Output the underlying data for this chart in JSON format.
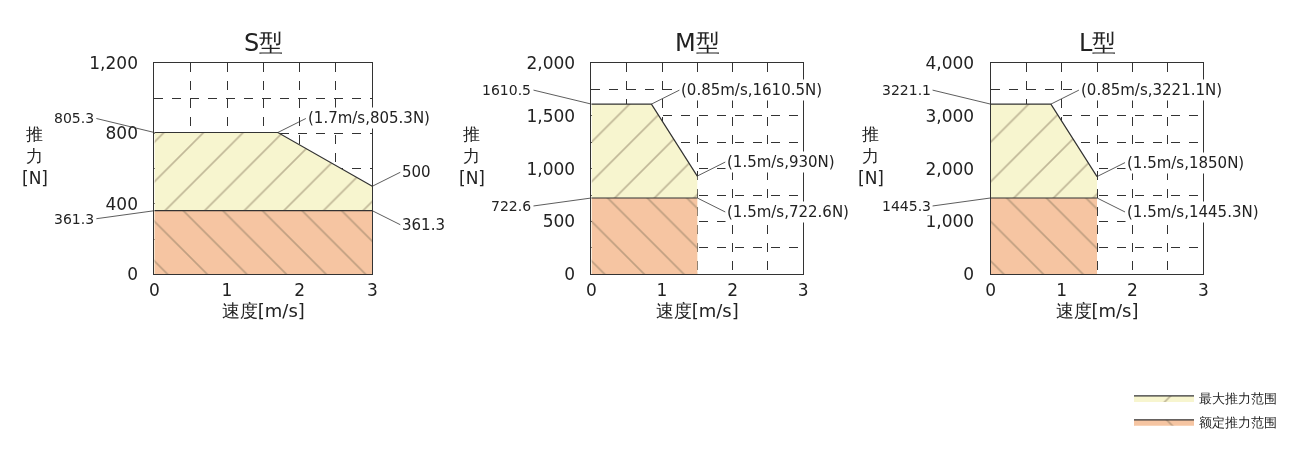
{
  "chart_data": [
    {
      "type": "area",
      "title": "S型",
      "xlabel": "速度[m/s]",
      "ylabel": "推力[N]",
      "xlim": [
        0,
        3
      ],
      "ylim": [
        0,
        1200
      ],
      "legend": "bottom right",
      "xticks": [
        0,
        {
          "value": 0.5,
          "label": null
        },
        1,
        {
          "value": 1.5,
          "label": null
        },
        2,
        {
          "value": 2.5,
          "label": null
        },
        3
      ],
      "yticks": [
        0,
        {
          "value": 200,
          "label": null
        },
        400,
        {
          "value": 600,
          "label": null
        },
        800,
        {
          "value": 1000,
          "label": null
        },
        {
          "value": 1200,
          "label": "1,200"
        }
      ],
      "grid": true,
      "series": [
        {
          "name": "最大推力范围",
          "color": "#f7f5cf",
          "x": [
            0,
            1.7,
            3
          ],
          "values": [
            805.3,
            805.3,
            500
          ]
        },
        {
          "name": "额定推力范围",
          "color": "#f6c5a2",
          "x": [
            0,
            3
          ],
          "values": [
            361.3,
            361.3
          ]
        }
      ],
      "annotations": [
        {
          "text": "805.3",
          "x": 0,
          "y": 805.3
        },
        {
          "text": "361.3",
          "x": 0,
          "y": 361.3
        },
        {
          "text": "(1.7m/s,805.3N)",
          "x": 1.7,
          "y": 805.3
        },
        {
          "text": "500",
          "x": 3,
          "y": 500
        },
        {
          "text": "361.3",
          "x": 3,
          "y": 361.3
        }
      ]
    },
    {
      "type": "area",
      "title": "M型",
      "xlabel": "速度[m/s]",
      "ylabel": "推力[N]",
      "xlim": [
        0,
        3
      ],
      "ylim": [
        0,
        2000
      ],
      "xticks": [
        0,
        {
          "value": 0.5,
          "label": null
        },
        1,
        {
          "value": 1.5,
          "label": null
        },
        2,
        {
          "value": 2.5,
          "label": null
        },
        3
      ],
      "yticks": [
        0,
        {
          "value": 250,
          "label": null
        },
        500,
        {
          "value": 750,
          "label": null
        },
        {
          "value": 1000,
          "label": "1,000"
        },
        {
          "value": 1250,
          "label": null
        },
        {
          "value": 1500,
          "label": "1,500"
        },
        {
          "value": 1750,
          "label": null
        },
        {
          "value": 2000,
          "label": "2,000"
        }
      ],
      "grid": true,
      "series": [
        {
          "name": "最大推力范围",
          "color": "#f7f5cf",
          "x": [
            0,
            0.85,
            1.5
          ],
          "values": [
            1610.5,
            1610.5,
            930
          ]
        },
        {
          "name": "额定推力范围",
          "color": "#f6c5a2",
          "x": [
            0,
            1.5
          ],
          "values": [
            722.6,
            722.6
          ]
        }
      ],
      "annotations": [
        {
          "text": "1610.5",
          "x": 0,
          "y": 1610.5
        },
        {
          "text": "722.6",
          "x": 0,
          "y": 722.6
        },
        {
          "text": "(0.85m/s,1610.5N)",
          "x": 0.85,
          "y": 1610.5
        },
        {
          "text": "(1.5m/s,930N)",
          "x": 1.5,
          "y": 930
        },
        {
          "text": "(1.5m/s,722.6N)",
          "x": 1.5,
          "y": 722.6
        }
      ]
    },
    {
      "type": "area",
      "title": "L型",
      "xlabel": "速度[m/s]",
      "ylabel": "推力[N]",
      "xlim": [
        0,
        3
      ],
      "ylim": [
        0,
        4000
      ],
      "xticks": [
        0,
        {
          "value": 0.5,
          "label": null
        },
        1,
        {
          "value": 1.5,
          "label": null
        },
        2,
        {
          "value": 2.5,
          "label": null
        },
        3
      ],
      "yticks": [
        0,
        {
          "value": 500,
          "label": null
        },
        {
          "value": 1000,
          "label": "1,000"
        },
        {
          "value": 1500,
          "label": null
        },
        {
          "value": 2000,
          "label": "2,000"
        },
        {
          "value": 2500,
          "label": null
        },
        {
          "value": 3000,
          "label": "3,000"
        },
        {
          "value": 3500,
          "label": null
        },
        {
          "value": 4000,
          "label": "4,000"
        }
      ],
      "grid": true,
      "series": [
        {
          "name": "最大推力范围",
          "color": "#f7f5cf",
          "x": [
            0,
            0.85,
            1.5
          ],
          "values": [
            3221.1,
            3221.1,
            1850
          ]
        },
        {
          "name": "额定推力范围",
          "color": "#f6c5a2",
          "x": [
            0,
            1.5
          ],
          "values": [
            1445.3,
            1445.3
          ]
        }
      ],
      "annotations": [
        {
          "text": "3221.1",
          "x": 0,
          "y": 3221.1
        },
        {
          "text": "1445.3",
          "x": 0,
          "y": 1445.3
        },
        {
          "text": "(0.85m/s,3221.1N)",
          "x": 0.85,
          "y": 3221.1
        },
        {
          "text": "(1.5m/s,1850N)",
          "x": 1.5,
          "y": 1850
        },
        {
          "text": "(1.5m/s,1445.3N)",
          "x": 1.5,
          "y": 1445.3
        }
      ]
    }
  ]
}
